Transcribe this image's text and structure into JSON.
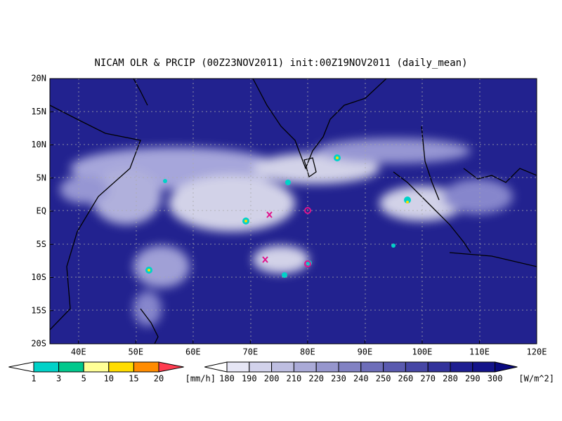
{
  "title": "NICAM OLR & PRCIP (00Z23NOV2011) init:00Z19NOV2011 (daily_mean)",
  "lat_labels": [
    "20N",
    "15N",
    "10N",
    "5N",
    "EQ",
    "5S",
    "10S",
    "15S",
    "20S"
  ],
  "lon_labels": [
    "40E",
    "50E",
    "60E",
    "70E",
    "80E",
    "90E",
    "100E",
    "110E",
    "120E"
  ],
  "precip_legend": {
    "labels": [
      "1",
      "3",
      "5",
      "10",
      "15",
      "20"
    ],
    "unit": "[mm/h]",
    "colors": [
      "#ffffff",
      "#00d2c8",
      "#00c88c",
      "#ffff96",
      "#ffdc00",
      "#ff8c00",
      "#ff3c50"
    ]
  },
  "olr_legend": {
    "labels": [
      "180",
      "190",
      "200",
      "210",
      "220",
      "230",
      "240",
      "250",
      "260",
      "270",
      "280",
      "290",
      "300"
    ],
    "unit": "[W/m^2]",
    "colors": [
      "#ffffff",
      "#e6e6f5",
      "#d2d2eb",
      "#bebee1",
      "#aaaad7",
      "#9696cd",
      "#8282c3",
      "#6e6eb9",
      "#5a5aaf",
      "#4646a5",
      "#32329b",
      "#1e1e91",
      "#14148a",
      "#0a0a80"
    ]
  }
}
